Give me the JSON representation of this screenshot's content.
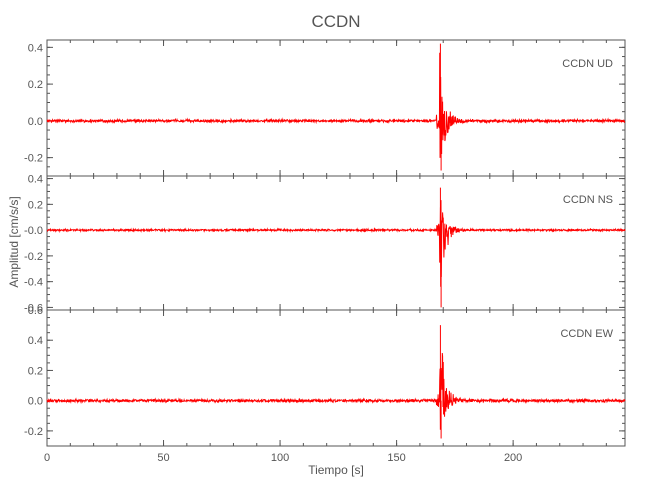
{
  "chart_data": {
    "type": "line",
    "title": "CCDN",
    "xlabel": "Tiempo [s]",
    "ylabel": "Amplitud [cm/s/s]",
    "xlim": [
      0,
      248
    ],
    "xticks": [
      0,
      50,
      100,
      150,
      200
    ],
    "line_color": "#ff0000",
    "axis_color": "#555555",
    "grid": false,
    "event_time_s": 168.5,
    "panels": [
      {
        "label_station": "CCDN",
        "label_component": "UD",
        "ylim": [
          -0.3,
          0.44
        ],
        "yticks": [
          -0.2,
          0.0,
          0.2,
          0.4
        ],
        "ytick_labels": [
          "-0.2",
          "0.0",
          "0.2",
          "0.4"
        ],
        "noise_level": 0.006,
        "peak_positive": 0.42,
        "peak_negative": -0.27
      },
      {
        "label_station": "CCDN",
        "label_component": "NS",
        "ylim": [
          -0.62,
          0.42
        ],
        "yticks": [
          -0.6,
          -0.4,
          -0.2,
          0.0,
          0.2,
          0.4
        ],
        "ytick_labels": [
          "-0.6",
          "-0.4",
          "-0.2",
          "-0.0",
          "0.2",
          "0.4"
        ],
        "noise_level": 0.006,
        "peak_positive": 0.33,
        "peak_negative": -0.6
      },
      {
        "label_station": "CCDN",
        "label_component": "EW",
        "ylim": [
          -0.3,
          0.6
        ],
        "yticks": [
          -0.2,
          0.0,
          0.2,
          0.4,
          0.6
        ],
        "ytick_labels": [
          "-0.2",
          "0.0",
          "0.2",
          "0.4",
          "0.6"
        ],
        "noise_level": 0.008,
        "peak_positive": 0.5,
        "peak_negative": -0.25
      }
    ]
  }
}
